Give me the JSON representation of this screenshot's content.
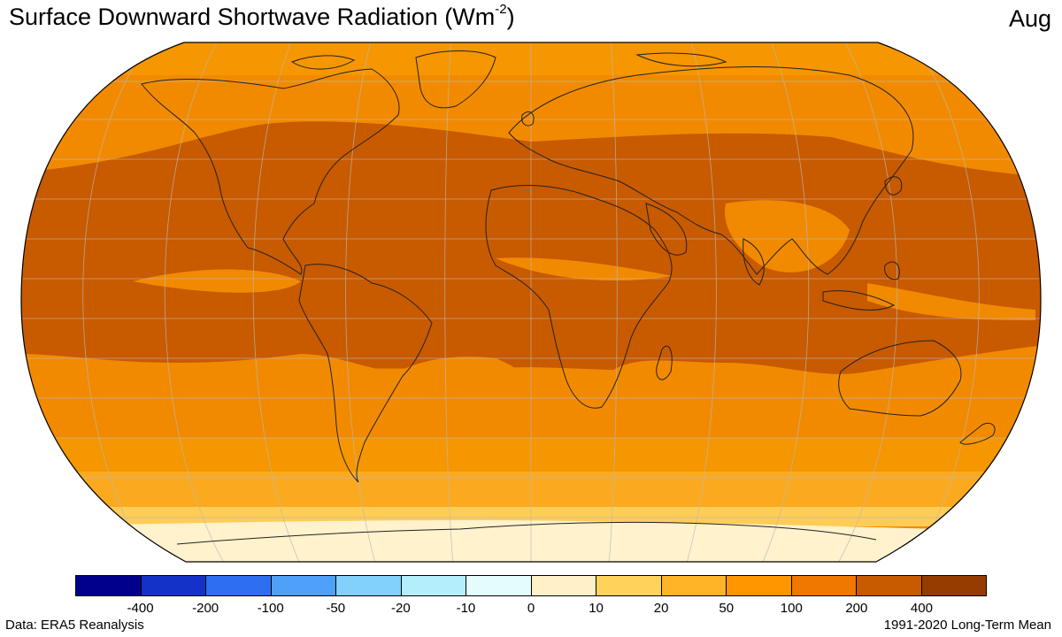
{
  "title": {
    "main": "Surface Downward Shortwave Radiation (Wm",
    "superscript": "-2",
    "close": ")"
  },
  "month": "Aug",
  "colorbar": {
    "colors": [
      "#00008c",
      "#1432c8",
      "#2e6ef0",
      "#4ea0f8",
      "#82d0fc",
      "#b4eefc",
      "#e4fcfc",
      "#fff0c8",
      "#ffd25a",
      "#ffb428",
      "#ff9600",
      "#f07800",
      "#c85a00",
      "#963c00"
    ],
    "ticks": [
      "-400",
      "-200",
      "-100",
      "-50",
      "-20",
      "-10",
      "0",
      "10",
      "20",
      "50",
      "100",
      "200",
      "400"
    ]
  },
  "footer": {
    "source": "Data: ERA5 Reanalysis",
    "period": "1991-2020 Long-Term Mean"
  }
}
